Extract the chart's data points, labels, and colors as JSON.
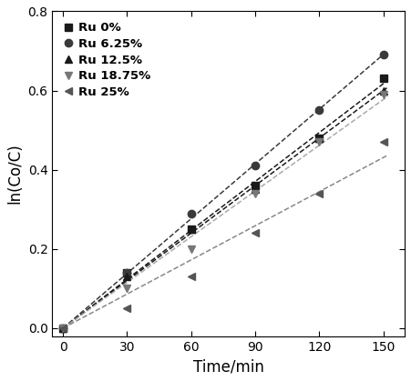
{
  "series": [
    {
      "label": "Ru 0%",
      "marker": "s",
      "color": "#1a1a1a",
      "x": [
        0,
        30,
        60,
        90,
        120,
        150
      ],
      "y": [
        0.0,
        0.14,
        0.25,
        0.36,
        0.48,
        0.63
      ]
    },
    {
      "label": "Ru 6.25%",
      "marker": "o",
      "color": "#3a3a3a",
      "x": [
        0,
        30,
        60,
        90,
        120,
        150
      ],
      "y": [
        0.0,
        0.14,
        0.29,
        0.41,
        0.55,
        0.69
      ]
    },
    {
      "label": "Ru 12.5%",
      "marker": "^",
      "color": "#1a1a1a",
      "x": [
        0,
        30,
        60,
        90,
        120,
        150
      ],
      "y": [
        0.0,
        0.13,
        0.25,
        0.35,
        0.48,
        0.6
      ]
    },
    {
      "label": "Ru 18.75%",
      "marker": "v",
      "color": "#777777",
      "x": [
        0,
        30,
        60,
        90,
        120,
        150
      ],
      "y": [
        0.0,
        0.1,
        0.2,
        0.34,
        0.47,
        0.59
      ]
    },
    {
      "label": "Ru 25%",
      "marker": "<",
      "color": "#555555",
      "x": [
        0,
        30,
        60,
        90,
        120,
        150
      ],
      "y": [
        0.0,
        0.05,
        0.13,
        0.24,
        0.34,
        0.47
      ]
    }
  ],
  "fit_line_colors": [
    "#1a1a1a",
    "#3a3a3a",
    "#1a1a1a",
    "#aaaaaa",
    "#888888"
  ],
  "xlabel": "Time/min",
  "ylabel": "ln(Co/C)",
  "xlim": [
    -5,
    160
  ],
  "ylim": [
    -0.02,
    0.8
  ],
  "xticks": [
    0,
    30,
    60,
    90,
    120,
    150
  ],
  "yticks": [
    0.0,
    0.2,
    0.4,
    0.6,
    0.8
  ],
  "legend_fontsize": 9.5,
  "axis_label_fontsize": 12,
  "tick_fontsize": 10,
  "markersize": 6,
  "linewidth": 1.1
}
